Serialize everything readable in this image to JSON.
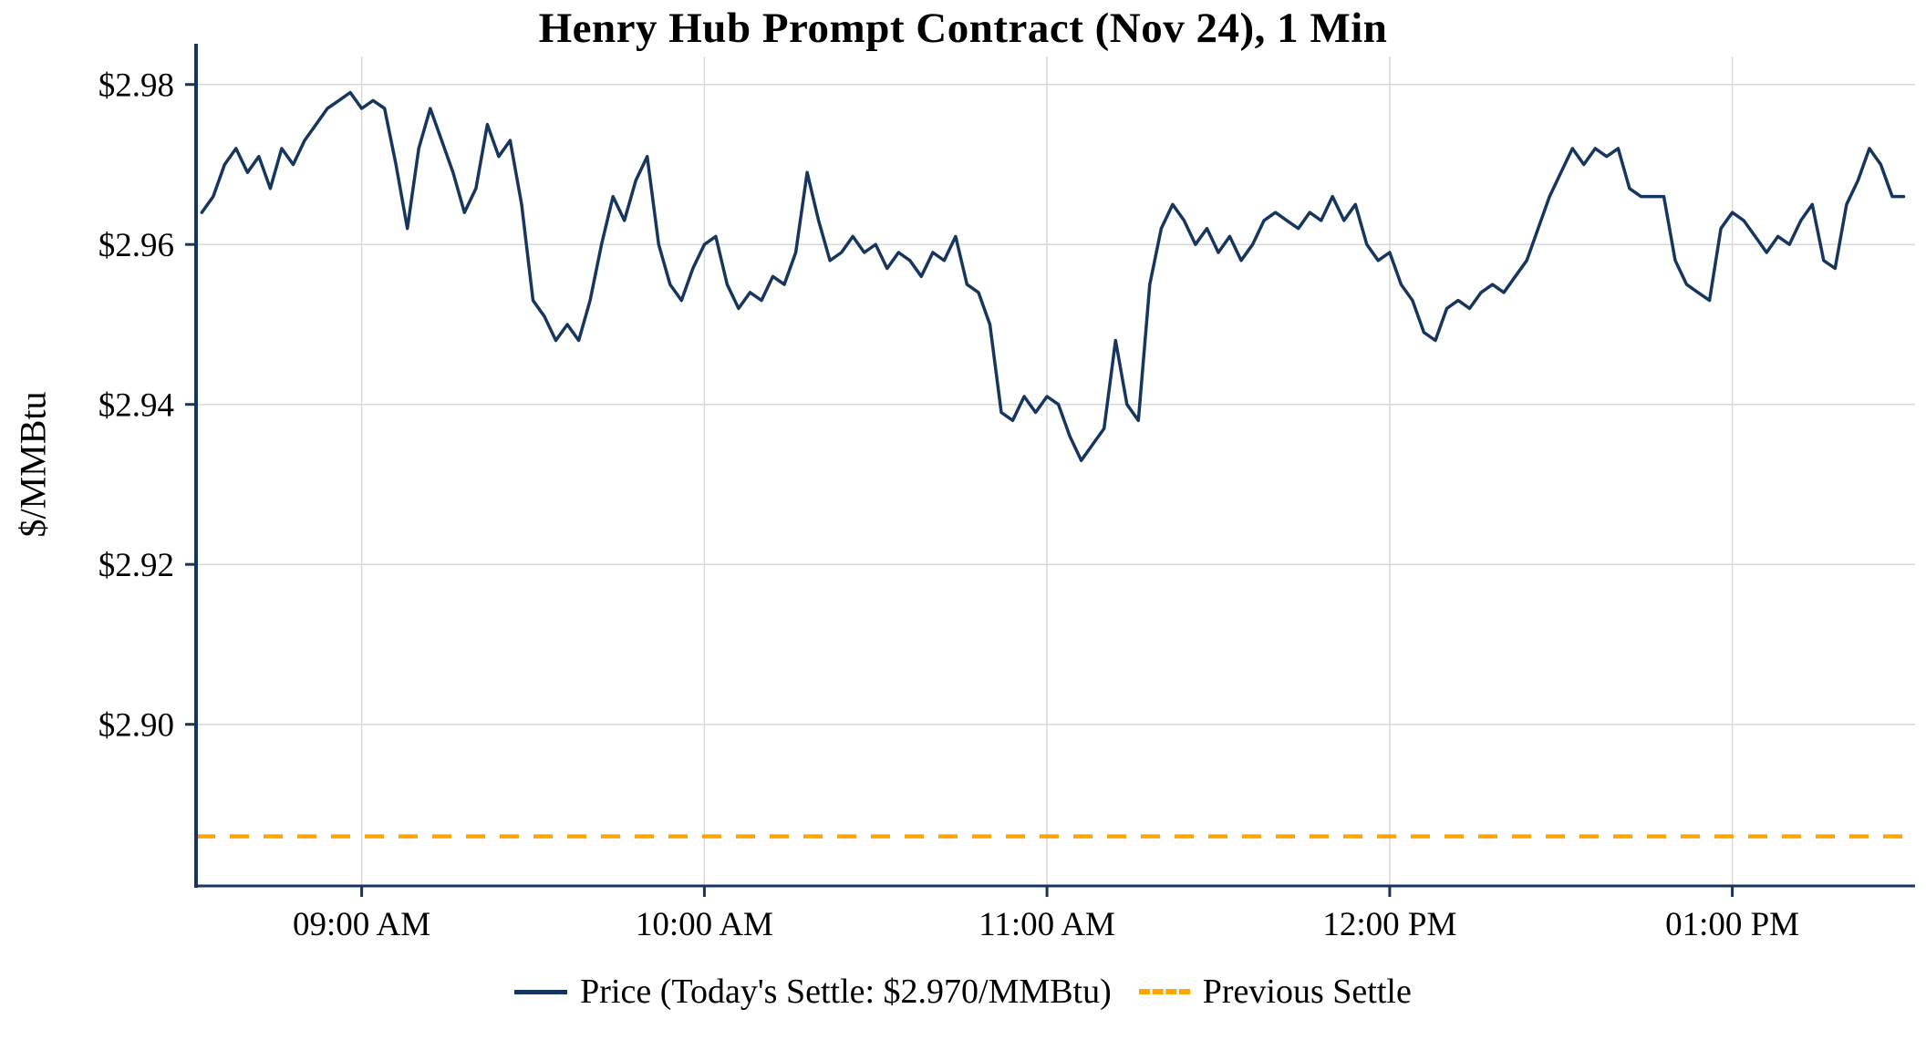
{
  "page": {
    "background": "#ffffff"
  },
  "chart_data": {
    "type": "line",
    "title": "Henry Hub Prompt Contract (Nov 24), 1 Min",
    "ylabel": "$/MMBtu",
    "xlabel": "",
    "grid": true,
    "legend_position": "bottom",
    "x_domain": [
      "08:31",
      "13:32"
    ],
    "y_domain": [
      2.8798,
      2.9835
    ],
    "today_settle": 2.97,
    "colors": {
      "grid": "#d9d9d9",
      "axis": "#17365d",
      "text": "#000000",
      "price": "#17365d",
      "previous_settle": "#FFA500"
    },
    "y_ticks": [
      {
        "value": 2.98,
        "label": "$2.98"
      },
      {
        "value": 2.96,
        "label": "$2.96"
      },
      {
        "value": 2.94,
        "label": "$2.94"
      },
      {
        "value": 2.92,
        "label": "$2.92"
      },
      {
        "value": 2.9,
        "label": "$2.90"
      }
    ],
    "x_ticks": [
      {
        "time": "09:00",
        "label": "09:00 AM"
      },
      {
        "time": "10:00",
        "label": "10:00 AM"
      },
      {
        "time": "11:00",
        "label": "11:00 AM"
      },
      {
        "time": "12:00",
        "label": "12:00 PM"
      },
      {
        "time": "13:00",
        "label": "01:00 PM"
      }
    ],
    "series": [
      {
        "name": "Price (Today's Settle: $2.970/MMBtu)",
        "type": "line",
        "style": "solid",
        "color": "#17365d",
        "width": 3.5,
        "x_start": "08:32",
        "x_step_minutes": 2,
        "values": [
          2.964,
          2.966,
          2.97,
          2.972,
          2.969,
          2.971,
          2.967,
          2.972,
          2.97,
          2.973,
          2.975,
          2.977,
          2.978,
          2.979,
          2.977,
          2.978,
          2.977,
          2.97,
          2.962,
          2.972,
          2.977,
          2.973,
          2.969,
          2.964,
          2.967,
          2.975,
          2.971,
          2.973,
          2.965,
          2.953,
          2.951,
          2.948,
          2.95,
          2.948,
          2.953,
          2.96,
          2.966,
          2.963,
          2.968,
          2.971,
          2.96,
          2.955,
          2.953,
          2.957,
          2.96,
          2.961,
          2.955,
          2.952,
          2.954,
          2.953,
          2.956,
          2.955,
          2.959,
          2.969,
          2.963,
          2.958,
          2.959,
          2.961,
          2.959,
          2.96,
          2.957,
          2.959,
          2.958,
          2.956,
          2.959,
          2.958,
          2.961,
          2.955,
          2.954,
          2.95,
          2.939,
          2.938,
          2.941,
          2.939,
          2.941,
          2.94,
          2.936,
          2.933,
          2.935,
          2.937,
          2.948,
          2.94,
          2.938,
          2.955,
          2.962,
          2.965,
          2.963,
          2.96,
          2.962,
          2.959,
          2.961,
          2.958,
          2.96,
          2.963,
          2.964,
          2.963,
          2.962,
          2.964,
          2.963,
          2.966,
          2.963,
          2.965,
          2.96,
          2.958,
          2.959,
          2.955,
          2.953,
          2.949,
          2.948,
          2.952,
          2.953,
          2.952,
          2.954,
          2.955,
          2.954,
          2.956,
          2.958,
          2.962,
          2.966,
          2.969,
          2.972,
          2.97,
          2.972,
          2.971,
          2.972,
          2.967,
          2.966,
          2.966,
          2.966,
          2.958,
          2.955,
          2.954,
          2.953,
          2.962,
          2.964,
          2.963,
          2.961,
          2.959,
          2.961,
          2.96,
          2.963,
          2.965,
          2.958,
          2.957,
          2.965,
          2.968,
          2.972,
          2.97,
          2.966,
          2.966
        ]
      },
      {
        "name": "Previous Settle",
        "type": "hline",
        "style": "dashed",
        "color": "#FFA500",
        "width": 4.5,
        "value": 2.886
      }
    ]
  }
}
